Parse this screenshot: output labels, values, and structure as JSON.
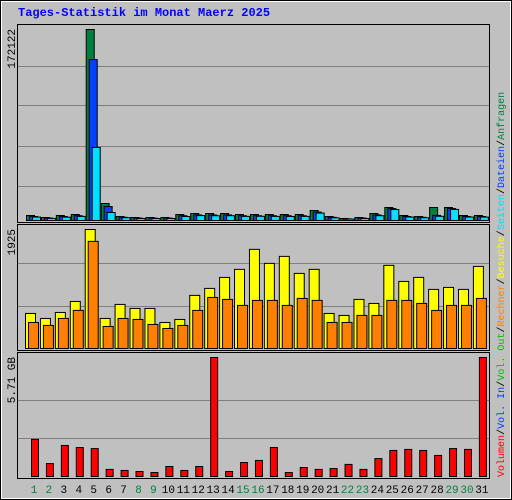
{
  "chart_data": [
    {
      "type": "bar",
      "title": "Tages-Statistik im Monat Maerz 2025",
      "ylim": [
        0,
        172122
      ],
      "yticks": [
        172122
      ],
      "series": [
        {
          "name": "Anfragen",
          "color": "#008040",
          "values": [
            4500,
            2700,
            4500,
            5400,
            172122,
            15300,
            3600,
            2700,
            2700,
            2700,
            5400,
            6300,
            6300,
            6300,
            5400,
            5400,
            5400,
            5400,
            5400,
            9000,
            3600,
            1800,
            2700,
            6300,
            11700,
            4500,
            3600,
            11700,
            11700,
            4500,
            4500
          ]
        },
        {
          "name": "Dateien",
          "color": "#0040ff",
          "values": [
            3600,
            2200,
            3600,
            4300,
            145000,
            12600,
            2900,
            2200,
            2200,
            2200,
            4300,
            5000,
            5000,
            5000,
            4300,
            4300,
            4300,
            4300,
            4300,
            7600,
            2900,
            1500,
            2200,
            5000,
            10800,
            3600,
            2900,
            4600,
            10800,
            3600,
            3600
          ]
        },
        {
          "name": "Seiten",
          "color": "#00e0ff",
          "values": [
            3100,
            1900,
            3000,
            3700,
            65800,
            7200,
            2500,
            1800,
            1800,
            1800,
            3600,
            4400,
            4300,
            4300,
            3700,
            3800,
            3700,
            3600,
            3700,
            6700,
            2400,
            1300,
            1800,
            4300,
            9900,
            3100,
            2500,
            3800,
            10000,
            3100,
            3100
          ]
        }
      ]
    },
    {
      "type": "bar",
      "ylim": [
        0,
        1925
      ],
      "yticks": [
        1925
      ],
      "series": [
        {
          "name": "Besuche",
          "color": "#ffff00",
          "values": [
            567,
            486,
            583,
            761,
            1925,
            486,
            713,
            648,
            648,
            421,
            470,
            859,
            972,
            1150,
            1280,
            1604,
            1377,
            1490,
            1215,
            1280,
            567,
            535,
            794,
            729,
            1345,
            1085,
            1150,
            956,
            988,
            956,
            1328
          ]
        },
        {
          "name": "Rechner",
          "color": "#ff8000",
          "values": [
            421,
            373,
            486,
            616,
            1733,
            356,
            486,
            470,
            389,
            324,
            373,
            616,
            826,
            794,
            697,
            778,
            778,
            697,
            810,
            778,
            421,
            421,
            535,
            535,
            778,
            778,
            729,
            616,
            697,
            697,
            810
          ]
        }
      ]
    },
    {
      "type": "bar",
      "ylim": [
        0,
        5.71
      ],
      "yticks": [
        {
          "value": 5.71,
          "label": "5.71 GB"
        }
      ],
      "categories": [
        1,
        2,
        3,
        4,
        5,
        6,
        7,
        8,
        9,
        10,
        11,
        12,
        13,
        14,
        15,
        16,
        17,
        18,
        19,
        20,
        21,
        22,
        23,
        24,
        25,
        26,
        27,
        28,
        29,
        30,
        31
      ],
      "category_colors": [
        "#008040",
        "#008040",
        "#000000",
        "#000000",
        "#000000",
        "#000000",
        "#000000",
        "#008040",
        "#008040",
        "#000000",
        "#000000",
        "#000000",
        "#000000",
        "#000000",
        "#008040",
        "#008040",
        "#000000",
        "#000000",
        "#000000",
        "#000000",
        "#000000",
        "#008040",
        "#008040",
        "#000000",
        "#000000",
        "#000000",
        "#000000",
        "#000000",
        "#008040",
        "#008040",
        "#000000"
      ],
      "series": [
        {
          "name": "Volumen",
          "color": "#ff0000",
          "values": [
            1.78,
            0.62,
            1.49,
            1.39,
            1.34,
            0.34,
            0.29,
            0.24,
            0.19,
            0.48,
            0.29,
            0.48,
            5.71,
            0.24,
            0.67,
            0.77,
            1.39,
            0.19,
            0.43,
            0.34,
            0.38,
            0.58,
            0.34,
            0.86,
            1.25,
            1.3,
            1.25,
            1.01,
            1.34,
            1.3,
            5.71
          ]
        }
      ],
      "legend_extra": [
        {
          "name": "Vol. In",
          "color": "#0040ff"
        },
        {
          "name": "Vol. Out",
          "color": "#00c000"
        }
      ]
    }
  ]
}
